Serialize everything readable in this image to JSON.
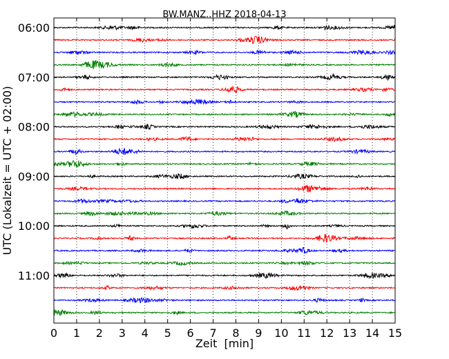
{
  "chart_data": {
    "type": "line",
    "title": "BW.MANZ..HHZ 2018-04-13",
    "xlabel": "Zeit  [min]",
    "ylabel": "UTC (Lokalzeit = UTC + 02:00)",
    "xlim": [
      0,
      15
    ],
    "xticks": [
      "0",
      "1",
      "2",
      "3",
      "4",
      "5",
      "6",
      "7",
      "8",
      "9",
      "10",
      "11",
      "12",
      "13",
      "14",
      "15"
    ],
    "yticks": [
      "06:00",
      "07:00",
      "08:00",
      "09:00",
      "10:00",
      "11:00"
    ],
    "grid": "vertical dotted at each minute",
    "trace_interval_minutes": 15,
    "trace_start": "06:00",
    "trace_count": 24,
    "trace_colors": [
      "#000000",
      "#ff0000",
      "#0000ff",
      "#008000"
    ],
    "series": [
      {
        "start": "06:00",
        "color": "#000000"
      },
      {
        "start": "06:15",
        "color": "#ff0000"
      },
      {
        "start": "06:30",
        "color": "#0000ff"
      },
      {
        "start": "06:45",
        "color": "#008000"
      },
      {
        "start": "07:00",
        "color": "#000000"
      },
      {
        "start": "07:15",
        "color": "#ff0000"
      },
      {
        "start": "07:30",
        "color": "#0000ff"
      },
      {
        "start": "07:45",
        "color": "#008000"
      },
      {
        "start": "08:00",
        "color": "#000000"
      },
      {
        "start": "08:15",
        "color": "#ff0000"
      },
      {
        "start": "08:30",
        "color": "#0000ff"
      },
      {
        "start": "08:45",
        "color": "#008000"
      },
      {
        "start": "09:00",
        "color": "#000000"
      },
      {
        "start": "09:15",
        "color": "#ff0000"
      },
      {
        "start": "09:30",
        "color": "#0000ff"
      },
      {
        "start": "09:45",
        "color": "#008000"
      },
      {
        "start": "10:00",
        "color": "#000000"
      },
      {
        "start": "10:15",
        "color": "#ff0000"
      },
      {
        "start": "10:30",
        "color": "#0000ff"
      },
      {
        "start": "10:45",
        "color": "#008000"
      },
      {
        "start": "11:00",
        "color": "#000000"
      },
      {
        "start": "11:15",
        "color": "#ff0000"
      },
      {
        "start": "11:30",
        "color": "#0000ff"
      },
      {
        "start": "11:45",
        "color": "#008000"
      }
    ]
  }
}
